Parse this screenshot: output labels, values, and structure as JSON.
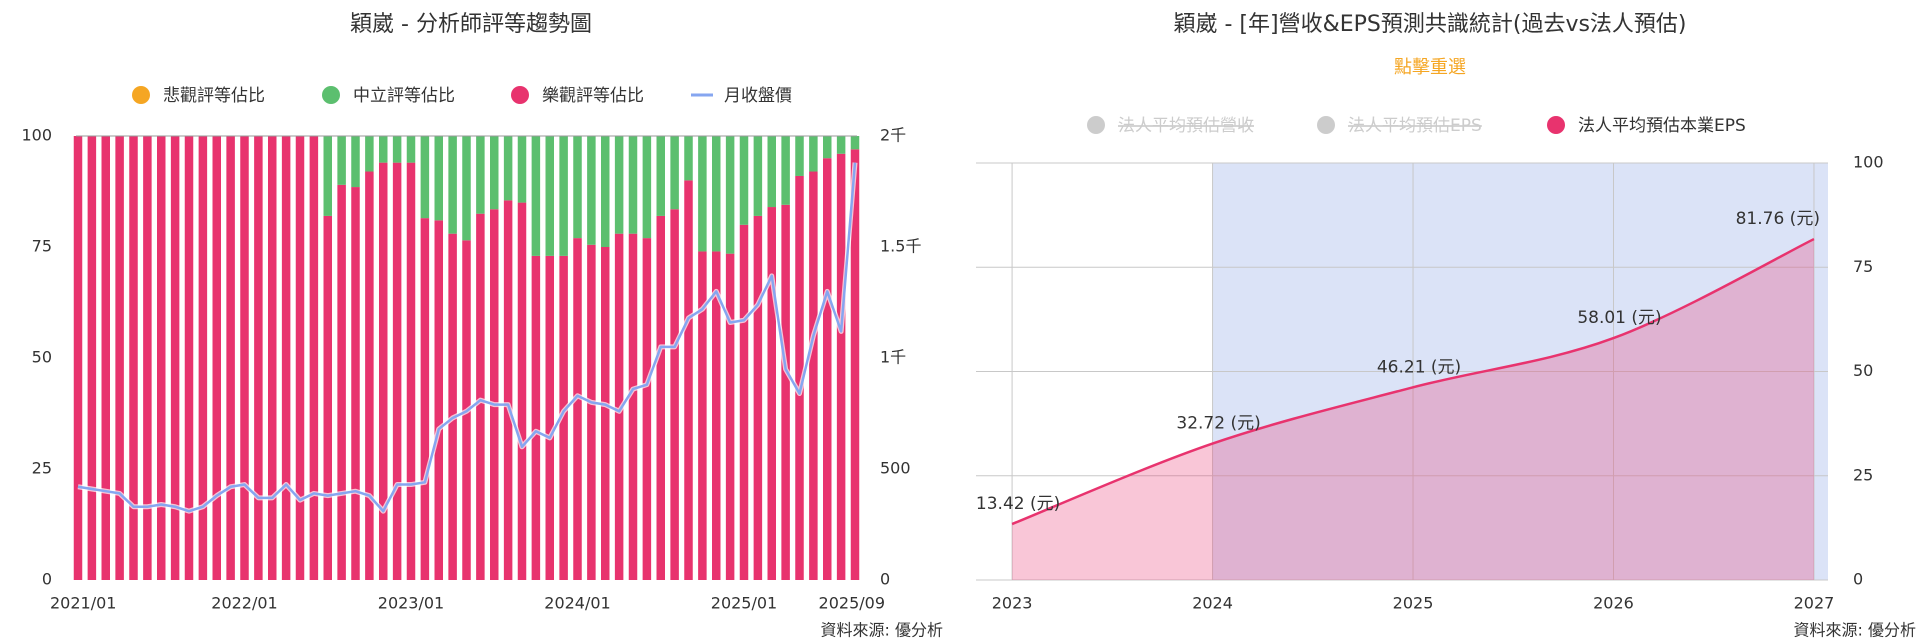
{
  "chart_data": [
    {
      "type": "bar",
      "stacked": true,
      "title": "穎崴 - 分析師評等趨勢圖",
      "categories": [
        "2021/01",
        null,
        null,
        null,
        null,
        null,
        null,
        null,
        null,
        null,
        null,
        null,
        "2022/01",
        null,
        null,
        null,
        null,
        null,
        null,
        null,
        null,
        null,
        null,
        null,
        "2023/01",
        null,
        null,
        null,
        null,
        null,
        null,
        null,
        null,
        null,
        null,
        null,
        "2024/01",
        null,
        null,
        null,
        null,
        null,
        null,
        null,
        null,
        null,
        null,
        null,
        "2025/01",
        null,
        null,
        null,
        null,
        null,
        null,
        null,
        "2025/09"
      ],
      "series": [
        {
          "name": "悲觀評等佔比",
          "color": "#f5a623",
          "values": [
            0,
            0,
            0,
            0,
            0,
            0,
            0,
            0,
            0,
            0,
            0,
            0,
            0,
            0,
            0,
            0,
            0,
            0,
            0,
            0,
            0,
            0,
            0,
            0,
            0,
            0,
            0,
            0,
            0,
            0,
            0,
            0,
            0,
            0,
            0,
            0,
            0,
            0,
            0,
            0,
            0,
            0,
            0,
            0,
            0,
            0,
            0,
            0,
            0,
            0,
            0,
            0,
            0,
            0,
            0,
            0,
            0
          ]
        },
        {
          "name": "中立評等佔比",
          "color": "#5cbf6f",
          "values": [
            0,
            0,
            0,
            0,
            0,
            0,
            0,
            0,
            0,
            0,
            0,
            0,
            0,
            0,
            0,
            0,
            0,
            0,
            18,
            11,
            11.5,
            8,
            6,
            6,
            6,
            18.5,
            19,
            22,
            23.5,
            17.5,
            16.5,
            14.5,
            15,
            27,
            27,
            27,
            23,
            24.5,
            25,
            22,
            22,
            23,
            18,
            16.5,
            10,
            26,
            26,
            26.5,
            20,
            18,
            16,
            15.5,
            9,
            8,
            5,
            4,
            3
          ]
        },
        {
          "name": "樂觀評等佔比",
          "color": "#e8336e",
          "values": [
            100,
            100,
            100,
            100,
            100,
            100,
            100,
            100,
            100,
            100,
            100,
            100,
            100,
            100,
            100,
            100,
            100,
            100,
            82,
            89,
            88.5,
            92,
            94,
            94,
            94,
            81.5,
            81,
            78,
            76.5,
            82.5,
            83.5,
            85.5,
            85,
            73,
            73,
            73,
            77,
            75.5,
            75,
            78,
            78,
            77,
            82,
            83.5,
            90,
            74,
            74,
            73.5,
            80,
            82,
            84,
            84.5,
            91,
            92,
            95,
            96,
            97
          ]
        },
        {
          "name": "月收盤價",
          "type": "line",
          "axis": "y2",
          "color": "#86a6f0",
          "values": [
            420,
            410,
            400,
            390,
            330,
            330,
            340,
            330,
            310,
            330,
            380,
            420,
            430,
            370,
            370,
            430,
            360,
            390,
            380,
            390,
            400,
            380,
            310,
            430,
            430,
            440,
            680,
            730,
            760,
            810,
            790,
            790,
            600,
            670,
            640,
            760,
            830,
            800,
            790,
            760,
            860,
            880,
            1050,
            1050,
            1180,
            1220,
            1300,
            1160,
            1170,
            1240,
            1370,
            950,
            840,
            1100,
            1300,
            1120,
            1880
          ]
        }
      ],
      "ylim": [
        0,
        100
      ],
      "yticks": [
        0,
        25,
        50,
        75,
        100
      ],
      "y2lim": [
        0,
        2000
      ],
      "y2ticks": [
        0,
        500,
        {
          "value": 1000,
          "label": "1千"
        },
        {
          "value": 1500,
          "label": "1.5千"
        },
        {
          "value": 2000,
          "label": "2千"
        }
      ],
      "grid": false,
      "source": "資料來源: 優分析"
    },
    {
      "type": "line",
      "title": "穎崴 - [年]營收&EPS預測共識統計(過去vs法人預估)",
      "subtitle": "點擊重選",
      "x": [
        2023,
        2024,
        2025,
        2026,
        2027
      ],
      "series": [
        {
          "name": "法人平均預估營收",
          "color": "#cccccc",
          "visible": false
        },
        {
          "name": "法人平均預估EPS",
          "color": "#cccccc",
          "visible": false
        },
        {
          "name": "法人平均預估本業EPS",
          "color": "#e8336e",
          "visible": true,
          "values": [
            13.42,
            32.72,
            46.21,
            58.01,
            81.76
          ],
          "value_labels": [
            "13.42 (元)",
            "32.72 (元)",
            "46.21 (元)",
            "58.01 (元)",
            "81.76 (元)"
          ]
        }
      ],
      "xlim": [
        2022.82,
        2027.07
      ],
      "xticks": [
        2023,
        2024,
        2025,
        2026,
        2027
      ],
      "ylim": [
        0,
        100
      ],
      "yticks": [
        0,
        25,
        50,
        75,
        100
      ],
      "shaded_xrange": [
        2024,
        2027.07
      ],
      "grid": true,
      "source": "資料來源: 優分析"
    }
  ]
}
